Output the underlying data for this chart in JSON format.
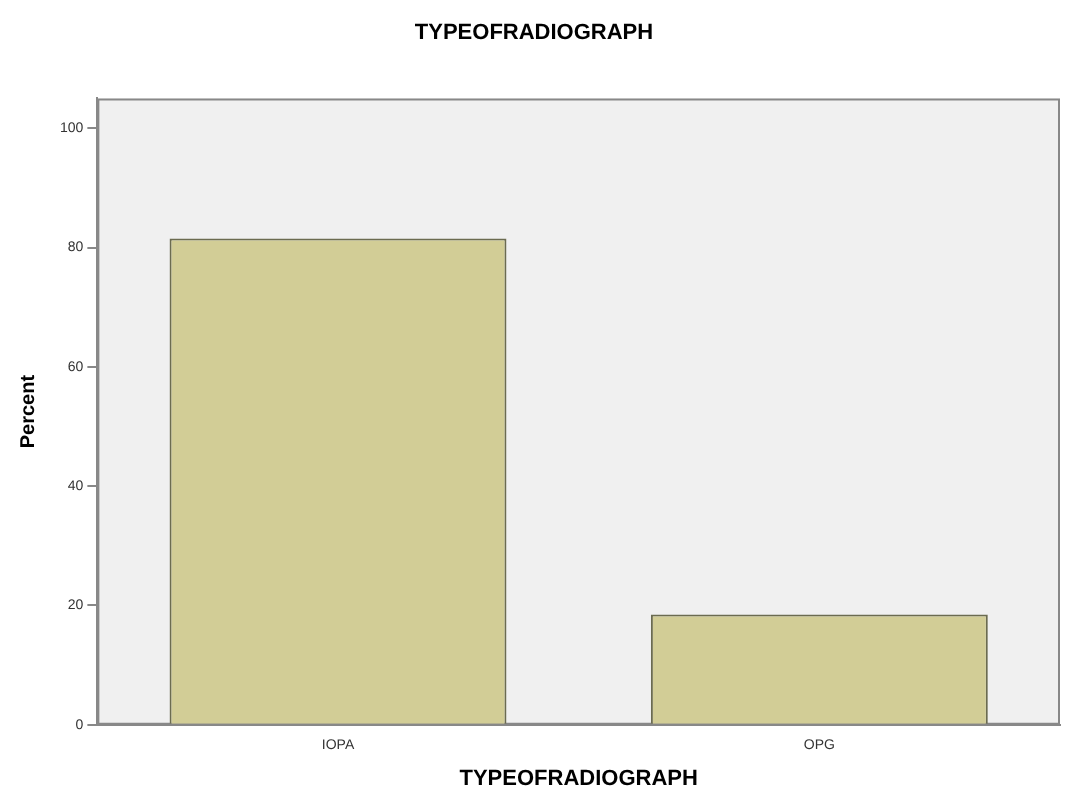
{
  "chart_data": {
    "type": "bar",
    "title": "TYPEOFRADIOGRAPH",
    "xlabel": "TYPEOFRADIOGRAPH",
    "ylabel": "Percent",
    "categories": [
      "IOPA",
      "OPG"
    ],
    "values": [
      81.5,
      18.5
    ],
    "color": "#d2cd96",
    "ylim": [
      0,
      105
    ],
    "yticks": [
      0,
      20,
      40,
      60,
      80,
      100
    ],
    "grid": false,
    "legend": false
  }
}
